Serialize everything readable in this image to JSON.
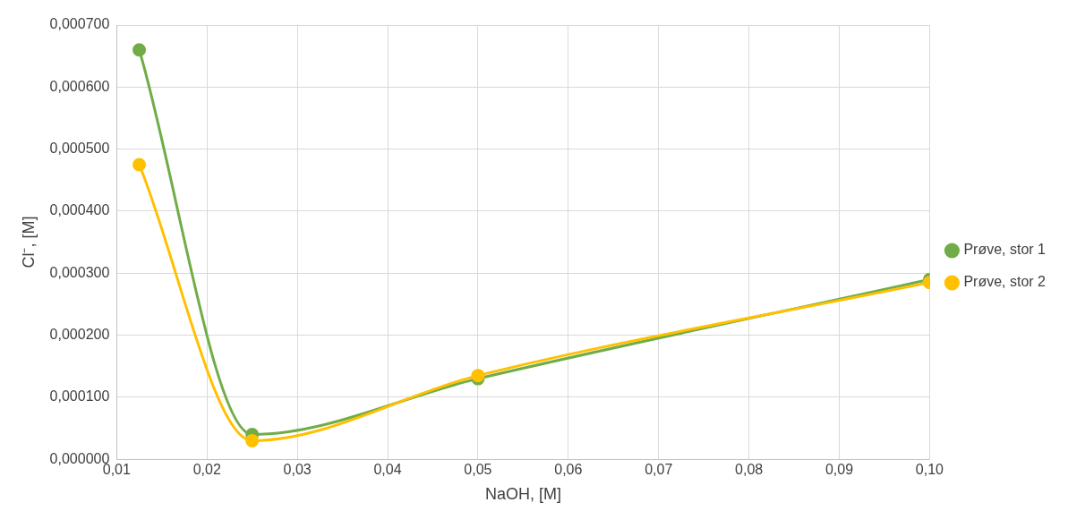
{
  "chart_data": {
    "type": "line",
    "xlabel": "NaOH, [M]",
    "ylabel": "Cl⁻, [M]",
    "x": [
      0.0125,
      0.025,
      0.05,
      0.1
    ],
    "series": [
      {
        "name": "Prøve, stor 1",
        "color": "#70ad47",
        "values": [
          0.00066,
          4e-05,
          0.00013,
          0.00029
        ]
      },
      {
        "name": "Prøve, stor 2",
        "color": "#ffc000",
        "values": [
          0.000475,
          3e-05,
          0.000135,
          0.000285
        ]
      }
    ],
    "xlim": [
      0.01,
      0.1
    ],
    "xticks": [
      {
        "value": 0.01,
        "label": "0,01"
      },
      {
        "value": 0.02,
        "label": "0,02"
      },
      {
        "value": 0.03,
        "label": "0,03"
      },
      {
        "value": 0.04,
        "label": "0,04"
      },
      {
        "value": 0.05,
        "label": "0,05"
      },
      {
        "value": 0.06,
        "label": "0,06"
      },
      {
        "value": 0.07,
        "label": "0,07"
      },
      {
        "value": 0.08,
        "label": "0,08"
      },
      {
        "value": 0.09,
        "label": "0,09"
      },
      {
        "value": 0.1,
        "label": "0,10"
      }
    ],
    "ylim": [
      0,
      0.0007
    ],
    "yticks": [
      {
        "value": 0,
        "label": "0,000000"
      },
      {
        "value": 0.0001,
        "label": "0,000100"
      },
      {
        "value": 0.0002,
        "label": "0,000200"
      },
      {
        "value": 0.0003,
        "label": "0,000300"
      },
      {
        "value": 0.0004,
        "label": "0,000400"
      },
      {
        "value": 0.0005,
        "label": "0,000500"
      },
      {
        "value": 0.0006,
        "label": "0,000600"
      },
      {
        "value": 0.0007,
        "label": "0,000700"
      }
    ],
    "grid": true,
    "legend": "right",
    "marker": "circle",
    "line_style": "solid"
  }
}
